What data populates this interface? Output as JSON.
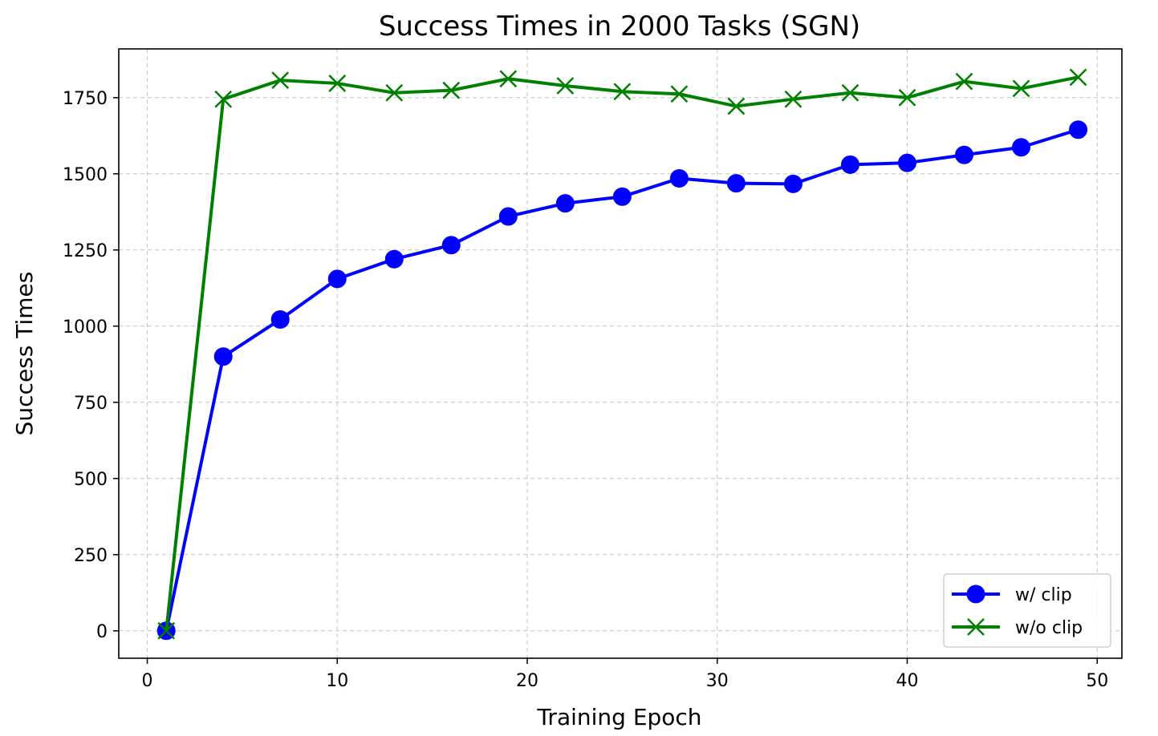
{
  "chart_data": {
    "type": "line",
    "title": "Success Times in 2000 Tasks (SGN)",
    "xlabel": "Training Epoch",
    "ylabel": "Success Times",
    "xlim": [
      -1.5,
      51.3
    ],
    "ylim": [
      -90,
      1910
    ],
    "xticks": [
      0,
      10,
      20,
      30,
      40,
      50
    ],
    "yticks": [
      0,
      250,
      500,
      750,
      1000,
      1250,
      1500,
      1750
    ],
    "grid": true,
    "legend_position": "lower-right",
    "x": [
      1,
      4,
      7,
      10,
      13,
      16,
      19,
      22,
      25,
      28,
      31,
      34,
      37,
      40,
      43,
      46,
      49
    ],
    "series": [
      {
        "name": "w/ clip",
        "color": "#0000ff",
        "marker": "circle",
        "values": [
          0,
          900,
          1022,
          1155,
          1220,
          1266,
          1360,
          1403,
          1425,
          1485,
          1469,
          1467,
          1530,
          1536,
          1562,
          1587,
          1645
        ]
      },
      {
        "name": "w/o clip",
        "color": "#008000",
        "marker": "x",
        "values": [
          0,
          1745,
          1807,
          1797,
          1766,
          1774,
          1812,
          1789,
          1770,
          1762,
          1722,
          1745,
          1766,
          1750,
          1803,
          1780,
          1817
        ]
      }
    ]
  }
}
